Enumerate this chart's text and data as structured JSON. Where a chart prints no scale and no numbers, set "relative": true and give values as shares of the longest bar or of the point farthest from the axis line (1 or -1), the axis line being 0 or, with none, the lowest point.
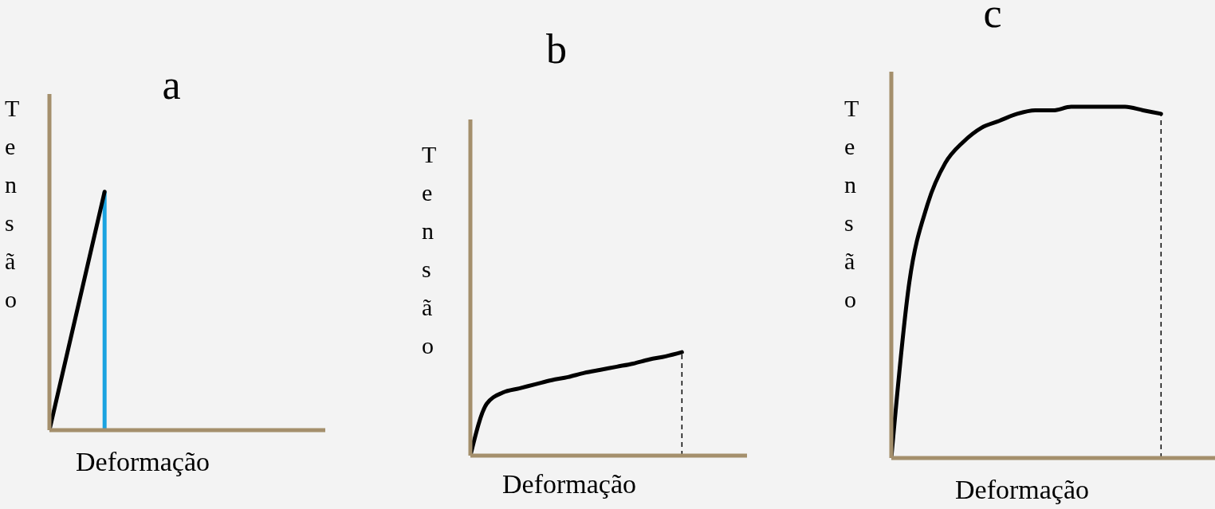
{
  "chart_data": [
    {
      "type": "line",
      "title": "a",
      "xlabel": "Deformação",
      "ylabel": "Tensão",
      "relative": true,
      "categories": [
        null,
        null,
        null,
        null,
        null,
        null
      ],
      "series": [
        {
          "color": "#000000",
          "values": [
            0,
            1,
            null,
            null,
            null,
            null
          ]
        }
      ]
    },
    {
      "type": "line",
      "title": "b",
      "xlabel": "Deformação",
      "ylabel": "Tensão",
      "relative": true,
      "categories": [
        null,
        null,
        null,
        null,
        null,
        null,
        null,
        null,
        null,
        null,
        null,
        null,
        null,
        null,
        null,
        null,
        null,
        null
      ],
      "series": [
        {
          "color": "#000000",
          "values": [
            0,
            0.5,
            0.61,
            0.65,
            0.69,
            0.73,
            0.76,
            0.8,
            0.83,
            0.86,
            0.89,
            0.93,
            0.96,
            1,
            null,
            null,
            null,
            null
          ]
        }
      ]
    },
    {
      "type": "line",
      "title": "c",
      "xlabel": "Deformação",
      "ylabel": "Tensão",
      "relative": true,
      "categories": [
        null,
        null,
        null,
        null,
        null,
        null,
        null,
        null,
        null,
        null,
        null,
        null,
        null,
        null,
        null,
        null,
        null,
        null,
        null
      ],
      "series": [
        {
          "color": "#000000",
          "values": [
            0,
            0.5,
            0.72,
            0.84,
            0.9,
            0.94,
            0.96,
            0.98,
            0.99,
            0.99,
            1,
            1,
            1,
            1,
            0.99,
            0.98,
            null,
            null,
            null
          ]
        }
      ]
    }
  ]
}
